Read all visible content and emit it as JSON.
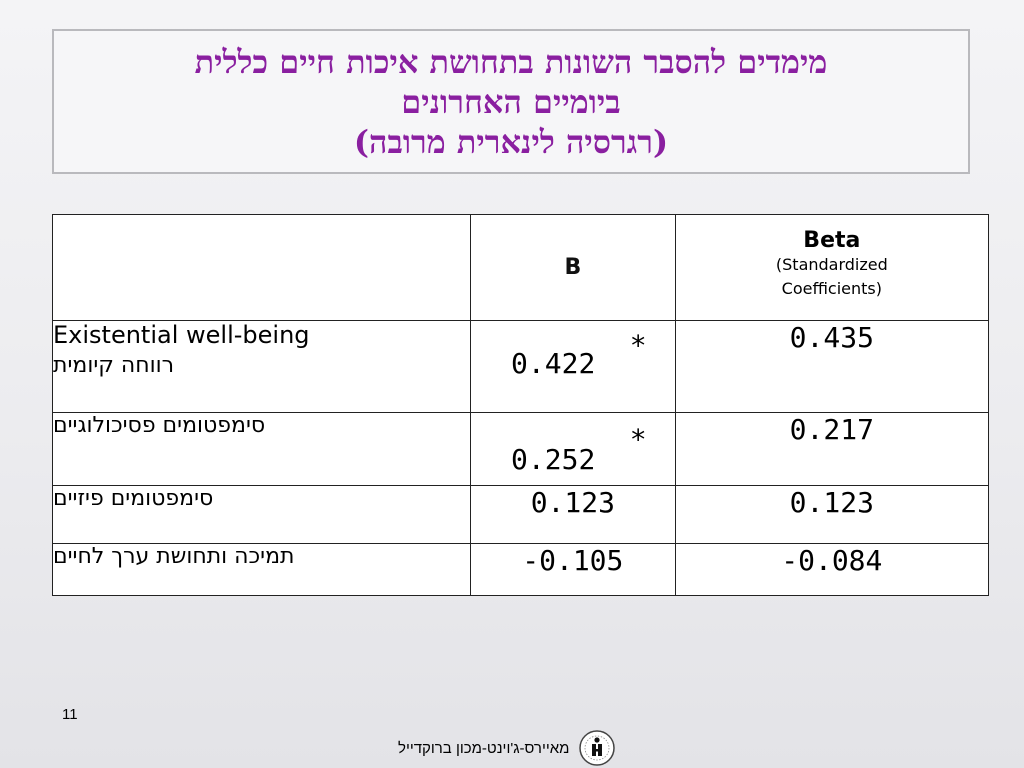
{
  "title": {
    "line1": "מימדים להסבר השונות בתחושת איכות חיים כללית",
    "line2": "ביומיים האחרונים",
    "line3": "(רגרסיה לינארית מרובה)"
  },
  "table": {
    "headers": {
      "variable": "",
      "b": "B",
      "beta_name": "Beta",
      "beta_sub1": "(Standardized",
      "beta_sub2": "Coefficients)"
    },
    "rows": [
      {
        "label_en": "Existential well-being",
        "label_he": "רווחה קיומית",
        "b": "0.422",
        "b_star": "*",
        "beta": "0.435"
      },
      {
        "label_he": "סימפטומים פסיכולוגיים",
        "b": "0.252",
        "b_star": "*",
        "beta": "0.217"
      },
      {
        "label_he": "סימפטומים פיזיים",
        "b": "0.123",
        "beta": "0.123"
      },
      {
        "label_he": "תמיכה ותחושת ערך לחיים",
        "b": "-0.105",
        "beta": "-0.084"
      }
    ]
  },
  "footer": {
    "slide_number": "11",
    "institute": "מאיירס-ג'וינט-מכון ברוקדייל",
    "logo_icon": "institute-logo-icon"
  },
  "colors": {
    "title": "#8a1fa0"
  }
}
